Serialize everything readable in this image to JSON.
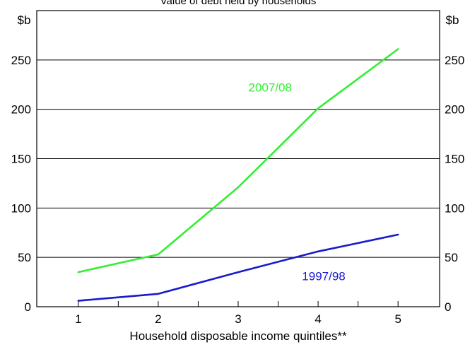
{
  "chart_data": {
    "type": "line",
    "title": "Value of debt held by households",
    "xlabel": "Household disposable income quintiles**",
    "ylabel_left": "$b",
    "ylabel_right": "$b",
    "categories": [
      1,
      2,
      3,
      4,
      5
    ],
    "x_tick_labels": [
      "1",
      "2",
      "3",
      "4",
      "5"
    ],
    "y_ticks": [
      0,
      50,
      100,
      150,
      200,
      250
    ],
    "ylim": [
      0,
      300
    ],
    "grid": true,
    "series": [
      {
        "name": "2007/08",
        "color": "#33ee33",
        "x": [
          1,
          1.5,
          2,
          3,
          4,
          5
        ],
        "values": [
          35,
          44,
          53,
          121,
          201,
          261
        ]
      },
      {
        "name": "1997/98",
        "color": "#1a1acc",
        "x": [
          1,
          2,
          3,
          4,
          5
        ],
        "values": [
          6,
          13,
          35,
          56,
          73
        ]
      }
    ]
  }
}
